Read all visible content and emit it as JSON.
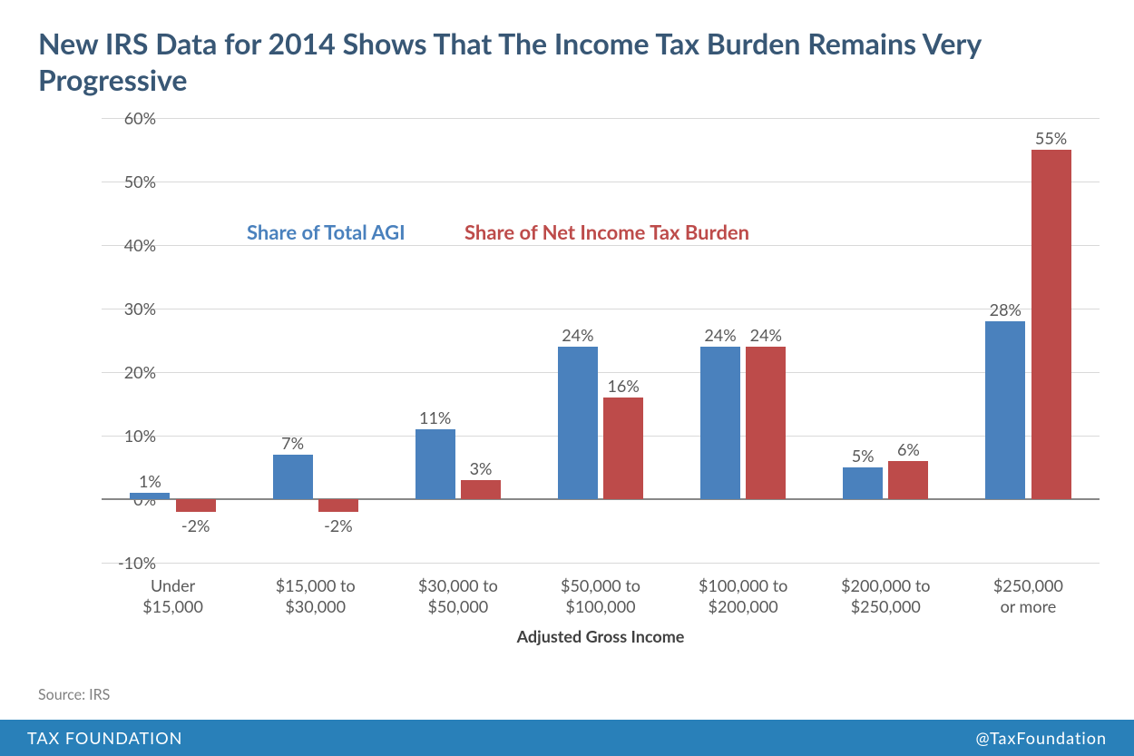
{
  "title": "New IRS Data for 2014 Shows That The Income Tax Burden Remains Very Progressive",
  "title_color": "#385775",
  "title_fontsize": 32,
  "chart": {
    "type": "bar",
    "categories": [
      "Under\n$15,000",
      "$15,000 to\n$30,000",
      "$30,000 to\n$50,000",
      "$50,000 to\n$100,000",
      "$100,000 to\n$200,000",
      "$200,000 to\n$250,000",
      "$250,000\nor more"
    ],
    "series": [
      {
        "name": "Share of Total AGI",
        "color": "#4a81bd",
        "values": [
          1,
          7,
          11,
          24,
          24,
          5,
          28
        ]
      },
      {
        "name": "Share of Net Income Tax Burden",
        "color": "#bd4b4a",
        "values": [
          -2,
          -2,
          3,
          16,
          24,
          6,
          55
        ]
      }
    ],
    "ylim": [
      -10,
      60
    ],
    "ytick_step": 10,
    "ytick_format_suffix": "%",
    "xlabel": "Adjusted Gross Income",
    "grid_color": "#d9d9d9",
    "zero_line_color": "#888888",
    "bar_width_ratio": 0.28,
    "bar_gap_ratio": 0.04,
    "background_color": "#ffffff",
    "tick_color": "#595959",
    "tick_fontsize": 18,
    "xlabel_fontsize": 18,
    "legend_fontsize": 22
  },
  "source": "Source: IRS",
  "footer": {
    "left": "TAX FOUNDATION",
    "right": "@TaxFoundation",
    "bg_color": "#2980b9",
    "text_color": "#ffffff"
  }
}
